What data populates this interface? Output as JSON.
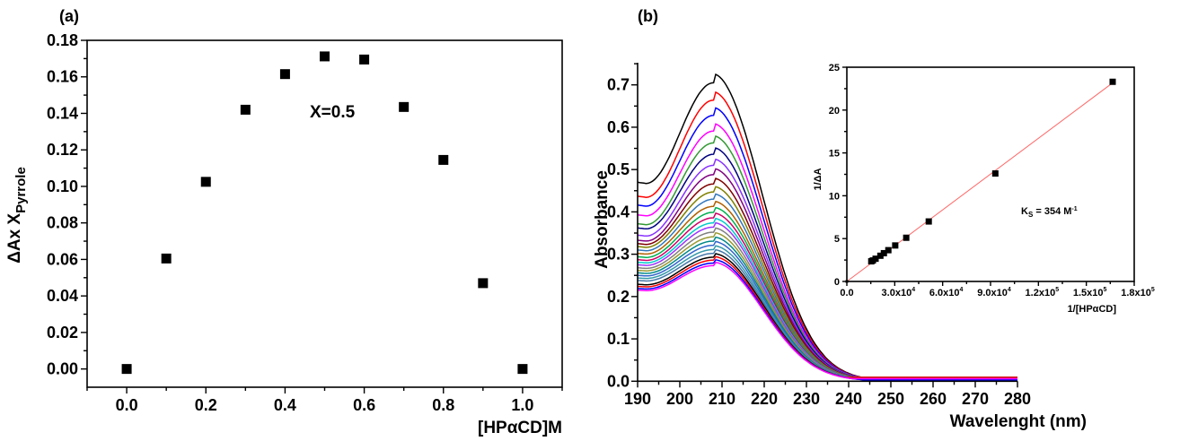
{
  "chart_data": [
    {
      "panel_label": "(a)",
      "type": "scatter",
      "xlabel": "[HPαCD]M",
      "ylabel_main": "ΔAx X",
      "ylabel_sub": "Pyrrole",
      "xlim": [
        -0.1,
        1.1
      ],
      "ylim": [
        -0.01,
        0.18
      ],
      "x_ticks": [
        "0.0",
        "0.2",
        "0.4",
        "0.6",
        "0.8",
        "1.0"
      ],
      "y_ticks": [
        "0.00",
        "0.02",
        "0.04",
        "0.06",
        "0.08",
        "0.10",
        "0.12",
        "0.14",
        "0.16",
        "0.18"
      ],
      "annotation": "X=0.5",
      "x": [
        0.0,
        0.1,
        0.2,
        0.3,
        0.4,
        0.5,
        0.6,
        0.7,
        0.8,
        0.9,
        1.0
      ],
      "y": [
        0.0,
        0.0605,
        0.1025,
        0.142,
        0.1615,
        0.1712,
        0.1695,
        0.1435,
        0.1145,
        0.047,
        0.0
      ],
      "marker": "square",
      "marker_color": "#000000",
      "grid": false
    },
    {
      "panel_label": "(b)",
      "type": "line",
      "xlabel": "Wavelenght (nm)",
      "ylabel": "Absorbance",
      "xlim": [
        190,
        280
      ],
      "ylim": [
        0,
        0.75
      ],
      "x_ticks": [
        "190",
        "200",
        "210",
        "220",
        "230",
        "240",
        "250",
        "260",
        "270",
        "280"
      ],
      "y_ticks": [
        "0.0",
        "0.1",
        "0.2",
        "0.3",
        "0.4",
        "0.5",
        "0.6",
        "0.7"
      ],
      "grid": false,
      "peak_wavelength": 208,
      "series": [
        {
          "color": "#000000",
          "peak": 0.705,
          "at_190": 0.47
        },
        {
          "color": "#ff0000",
          "peak": 0.664,
          "at_190": 0.437
        },
        {
          "color": "#0000ff",
          "peak": 0.628,
          "at_190": 0.416
        },
        {
          "color": "#ff00ff",
          "peak": 0.591,
          "at_190": 0.393
        },
        {
          "color": "#339933",
          "peak": 0.563,
          "at_190": 0.372
        },
        {
          "color": "#000080",
          "peak": 0.536,
          "at_190": 0.362
        },
        {
          "color": "#8833ff",
          "peak": 0.51,
          "at_190": 0.345
        },
        {
          "color": "#800080",
          "peak": 0.488,
          "at_190": 0.333
        },
        {
          "color": "#800000",
          "peak": 0.466,
          "at_190": 0.325
        },
        {
          "color": "#808000",
          "peak": 0.447,
          "at_190": 0.318
        },
        {
          "color": "#3377bb",
          "peak": 0.43,
          "at_190": 0.31
        },
        {
          "color": "#b06000",
          "peak": 0.413,
          "at_190": 0.302
        },
        {
          "color": "#00b050",
          "peak": 0.399,
          "at_190": 0.294
        },
        {
          "color": "#cc0066",
          "peak": 0.386,
          "at_190": 0.287
        },
        {
          "color": "#00cccc",
          "peak": 0.374,
          "at_190": 0.281
        },
        {
          "color": "#9933ff",
          "peak": 0.364,
          "at_190": 0.275
        },
        {
          "color": "#808080",
          "peak": 0.352,
          "at_190": 0.268
        },
        {
          "color": "#999933",
          "peak": 0.341,
          "at_190": 0.262
        },
        {
          "color": "#008888",
          "peak": 0.331,
          "at_190": 0.256
        },
        {
          "color": "#3366cc",
          "peak": 0.321,
          "at_190": 0.25
        },
        {
          "color": "#3399aa",
          "peak": 0.311,
          "at_190": 0.244
        },
        {
          "color": "#4477aa",
          "peak": 0.302,
          "at_190": 0.238
        },
        {
          "color": "#000000",
          "peak": 0.293,
          "at_190": 0.229
        },
        {
          "color": "#ff0000",
          "peak": 0.286,
          "at_190": 0.224
        },
        {
          "color": "#0000ff",
          "peak": 0.279,
          "at_190": 0.219
        },
        {
          "color": "#ff00ff",
          "peak": 0.273,
          "at_190": 0.215
        }
      ]
    },
    {
      "panel_label": "inset",
      "type": "scatter",
      "xlabel": "1/[HPαCD]",
      "ylabel": "1/ΔA",
      "xlim": [
        0,
        180000
      ],
      "ylim": [
        0,
        25
      ],
      "x_ticks": [
        {
          "base": "0.0",
          "exp": ""
        },
        {
          "base": "3.0x10",
          "exp": "4"
        },
        {
          "base": "6.0x10",
          "exp": "4"
        },
        {
          "base": "9.0x10",
          "exp": "4"
        },
        {
          "base": "1.2x10",
          "exp": "5"
        },
        {
          "base": "1.5x10",
          "exp": "5"
        },
        {
          "base": "1.8x10",
          "exp": "5"
        }
      ],
      "y_ticks": [
        "0",
        "5",
        "10",
        "15",
        "20",
        "25"
      ],
      "x": [
        0,
        15300,
        16300,
        18000,
        21000,
        23200,
        26000,
        30300,
        37200,
        51300,
        93000,
        166500
      ],
      "y": [
        0,
        2.35,
        2.45,
        2.65,
        3.0,
        3.3,
        3.65,
        4.2,
        5.1,
        7.0,
        12.6,
        23.3
      ],
      "marker_color": "#000000",
      "fit": {
        "type": "linear",
        "slope": 0.0001392,
        "intercept": 0,
        "color": "#ff6666"
      },
      "annotation": {
        "k": "K",
        "k_sub": "S",
        "text": " = 354 M",
        "sup": "-1"
      },
      "grid": false
    }
  ]
}
